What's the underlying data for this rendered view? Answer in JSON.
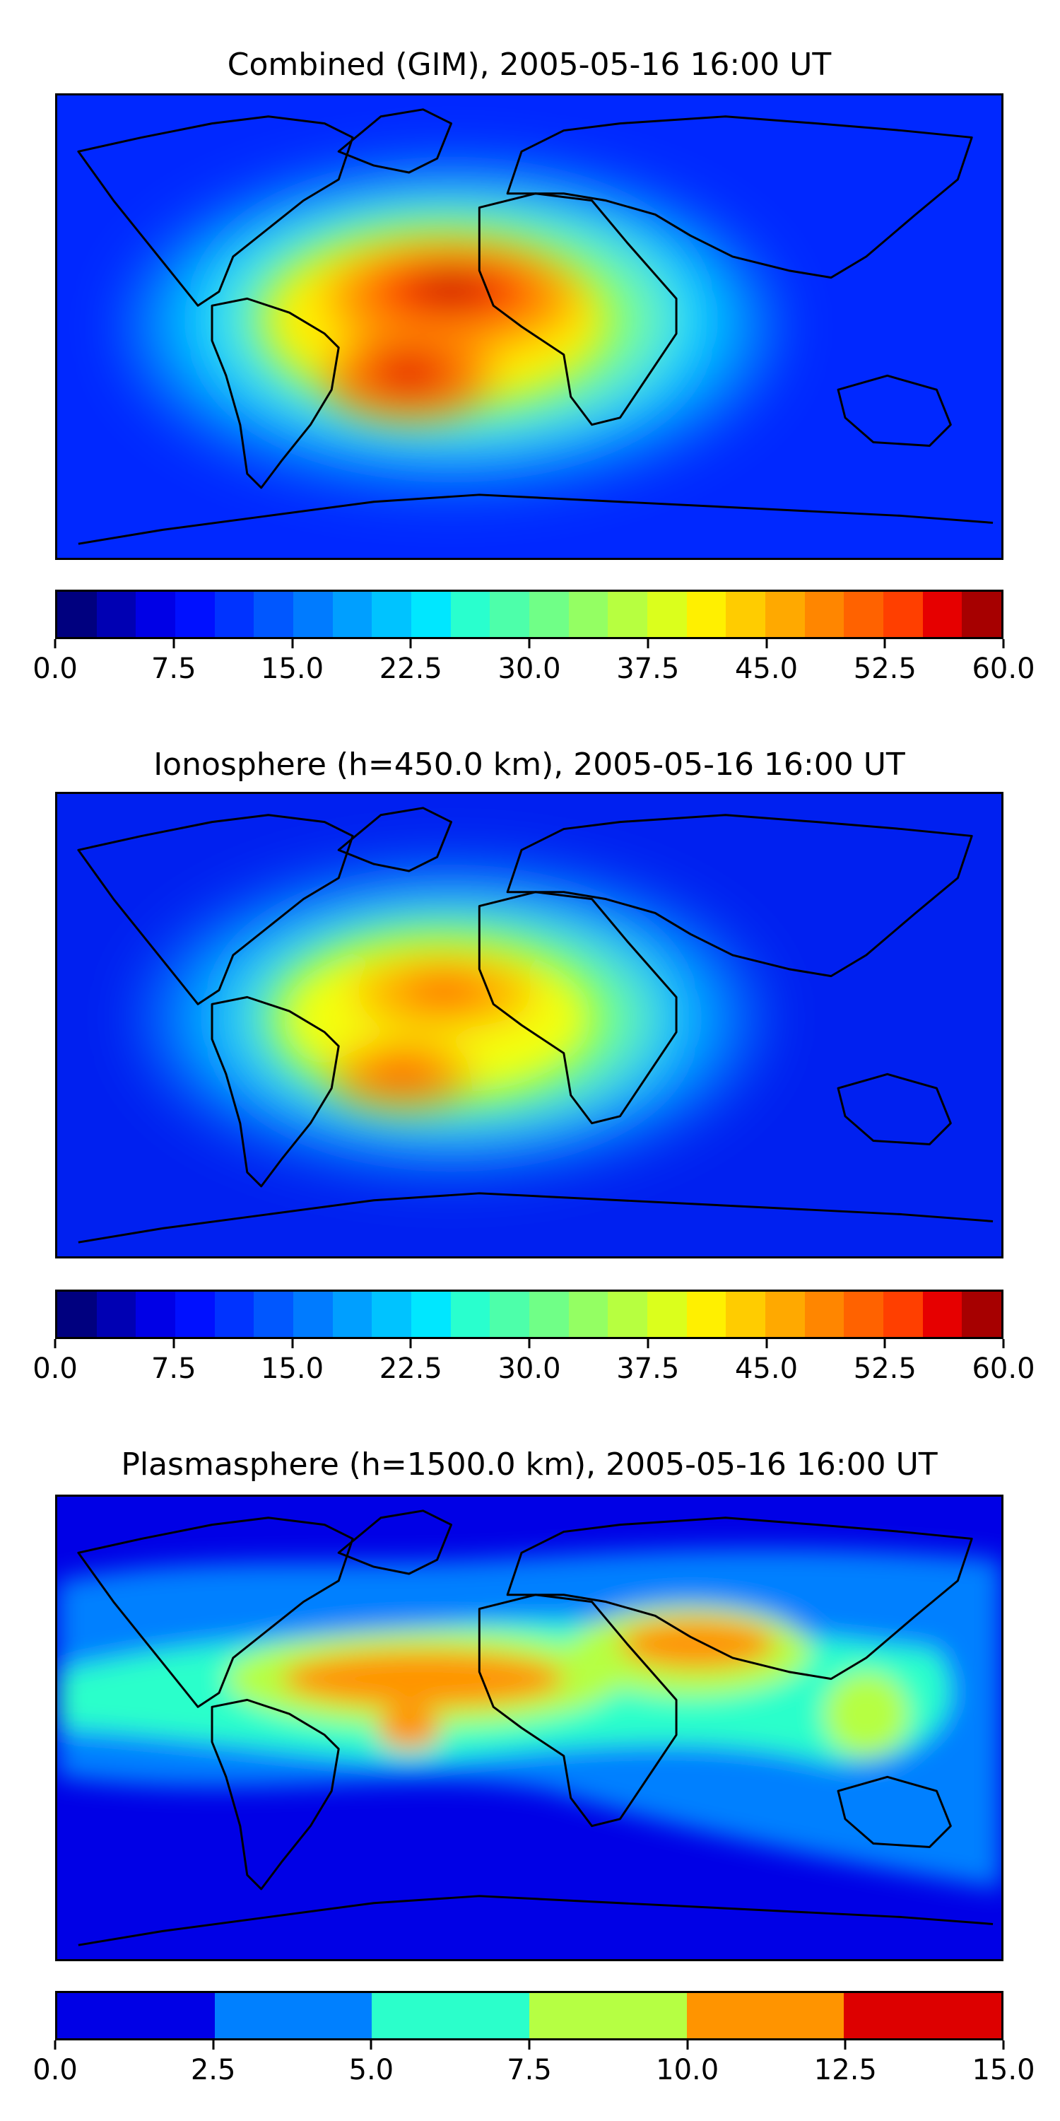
{
  "panels": [
    {
      "title": "Combined (GIM), 2005-05-16 16:00 UT",
      "colorbar_ticks": [
        "0.0",
        "7.5",
        "15.0",
        "22.5",
        "30.0",
        "37.5",
        "45.0",
        "52.5",
        "60.0"
      ],
      "colorbar_range": [
        0,
        60
      ],
      "colorbar_levels": 24
    },
    {
      "title": "Ionosphere  (h=450.0 km), 2005-05-16 16:00 UT",
      "colorbar_ticks": [
        "0.0",
        "7.5",
        "15.0",
        "22.5",
        "30.0",
        "37.5",
        "45.0",
        "52.5",
        "60.0"
      ],
      "colorbar_range": [
        0,
        60
      ],
      "colorbar_levels": 24
    },
    {
      "title": "Plasmasphere (h=1500.0 km), 2005-05-16 16:00 UT",
      "colorbar_ticks": [
        "0.0",
        "2.5",
        "5.0",
        "7.5",
        "10.0",
        "12.5",
        "15.0"
      ],
      "colorbar_range": [
        0,
        15
      ],
      "colorbar_levels": 6
    }
  ],
  "colors": {
    "jet24": [
      "#00007f",
      "#0000b3",
      "#0000e6",
      "#0010ff",
      "#0033ff",
      "#0057ff",
      "#007bff",
      "#009fff",
      "#00c3ff",
      "#00e7ff",
      "#29ffce",
      "#4dffaa",
      "#70ff87",
      "#94ff63",
      "#b7ff40",
      "#dbff1c",
      "#fff000",
      "#ffcc00",
      "#ffa900",
      "#ff8600",
      "#ff6200",
      "#ff3f00",
      "#e60000",
      "#a60000"
    ],
    "jet6": [
      "#0000e6",
      "#0080ff",
      "#2bffcb",
      "#b6ff43",
      "#ff9400",
      "#dd0000"
    ],
    "coastline": "#000000"
  }
}
